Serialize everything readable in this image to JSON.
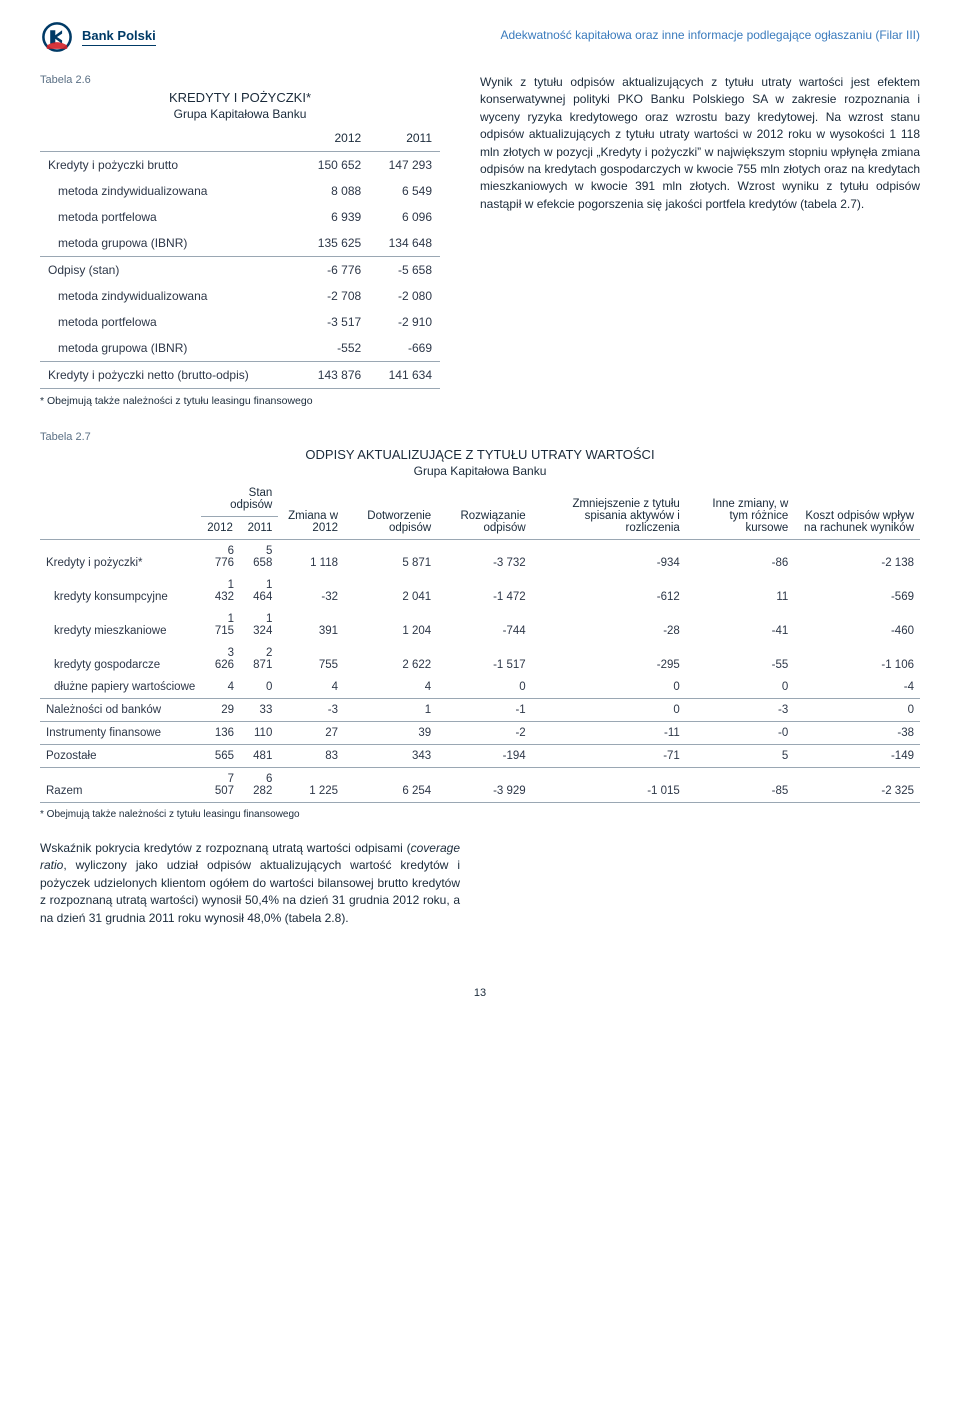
{
  "header": {
    "bank_name": "Bank Polski",
    "subtitle": "Adekwatność kapitałowa oraz inne informacje podlegające ogłaszaniu (Filar III)",
    "logo_colors": {
      "outer": "#003a66",
      "inner": "#d02028"
    }
  },
  "table26": {
    "label": "Tabela 2.6",
    "title": "KREDYTY I POŻYCZKI*",
    "subtitle": "Grupa Kapitałowa Banku",
    "col_2012": "2012",
    "col_2011": "2011",
    "rows": [
      {
        "label": "Kredyty i pożyczki brutto",
        "v12": "150 652",
        "v11": "147 293",
        "style": "top"
      },
      {
        "label": "metoda zindywidualizowana",
        "v12": "8 088",
        "v11": "6 549",
        "style": "indent"
      },
      {
        "label": "metoda portfelowa",
        "v12": "6 939",
        "v11": "6 096",
        "style": "indent"
      },
      {
        "label": "metoda grupowa (IBNR)",
        "v12": "135 625",
        "v11": "134 648",
        "style": "indent"
      },
      {
        "label": "Odpisy (stan)",
        "v12": "-6 776",
        "v11": "-5 658",
        "style": "top"
      },
      {
        "label": "metoda zindywidualizowana",
        "v12": "-2 708",
        "v11": "-2 080",
        "style": "indent"
      },
      {
        "label": "metoda portfelowa",
        "v12": "-3 517",
        "v11": "-2 910",
        "style": "indent"
      },
      {
        "label": "metoda grupowa (IBNR)",
        "v12": "-552",
        "v11": "-669",
        "style": "indent"
      },
      {
        "label": "Kredyty i pożyczki netto (brutto-odpis)",
        "v12": "143 876",
        "v11": "141 634",
        "style": "topbottom"
      }
    ],
    "footnote": "* Obejmują także należności z tytułu leasingu finansowego"
  },
  "right_text": {
    "p1": "Wynik z tytułu odpisów aktualizujących z tytułu utraty wartości jest efektem konserwatywnej polityki PKO Banku Polskiego SA w zakresie rozpoznania i wyceny ryzyka kredytowego oraz wzrostu bazy kredytowej. Na wzrost stanu odpisów aktualizujących z tytułu utraty wartości w 2012 roku w wysokości 1 118 mln złotych w pozycji „Kredyty i pożyczki” w największym stopniu wpłynęła zmiana odpisów na kredytach gospodarczych w kwocie 755 mln złotych oraz na kredytach mieszkaniowych w kwocie 391 mln złotych. Wzrost wyniku z tytułu odpisów nastąpił w efekcie pogorszenia się jakości portfela kredytów (tabela 2.7)."
  },
  "table27": {
    "label": "Tabela 2.7",
    "title": "ODPISY AKTUALIZUJĄCE Z TYTUŁU UTRATY WARTOŚCI",
    "subtitle": "Grupa Kapitałowa Banku",
    "headers": {
      "stan": "Stan odpisów",
      "y2012": "2012",
      "y2011": "2011",
      "zmiana": "Zmiana w 2012",
      "dotw": "Dotworzenie odpisów",
      "rozw": "Rozwiązanie odpisów",
      "zmn": "Zmniejszenie z tytułu spisania aktywów i rozliczenia",
      "inne": "Inne zmiany, w tym różnice kursowe",
      "koszt": "Koszt odpisów wpływ na rachunek wyników"
    },
    "rows": [
      {
        "label": "Kredyty i pożyczki*",
        "v": [
          "6 776",
          "5 658",
          "1 118",
          "5 871",
          "-3 732",
          "-934",
          "-86",
          "-2 138"
        ],
        "style": "top"
      },
      {
        "label": "kredyty konsumpcyjne",
        "v": [
          "1 432",
          "1 464",
          "-32",
          "2 041",
          "-1 472",
          "-612",
          "11",
          "-569"
        ],
        "style": "indent"
      },
      {
        "label": "kredyty mieszkaniowe",
        "v": [
          "1 715",
          "1 324",
          "391",
          "1 204",
          "-744",
          "-28",
          "-41",
          "-460"
        ],
        "style": "indent"
      },
      {
        "label": "kredyty gospodarcze",
        "v": [
          "3 626",
          "2 871",
          "755",
          "2 622",
          "-1 517",
          "-295",
          "-55",
          "-1 106"
        ],
        "style": "indent"
      },
      {
        "label": "dłużne papiery wartościowe",
        "v": [
          "4",
          "0",
          "4",
          "4",
          "0",
          "0",
          "0",
          "-4"
        ],
        "style": "indent"
      },
      {
        "label": "Należności od banków",
        "v": [
          "29",
          "33",
          "-3",
          "1",
          "-1",
          "0",
          "-3",
          "0"
        ],
        "style": "top"
      },
      {
        "label": "Instrumenty finansowe",
        "v": [
          "136",
          "110",
          "27",
          "39",
          "-2",
          "-11",
          "-0",
          "-38"
        ],
        "style": "top"
      },
      {
        "label": "Pozostałe",
        "v": [
          "565",
          "481",
          "83",
          "343",
          "-194",
          "-71",
          "5",
          "-149"
        ],
        "style": "top"
      },
      {
        "label": "Razem",
        "v": [
          "7 507",
          "6 282",
          "1 225",
          "6 254",
          "-3 929",
          "-1 015",
          "-85",
          "-2 325"
        ],
        "style": "razem"
      }
    ],
    "footnote": "* Obejmują także należności z tytułu leasingu finansowego"
  },
  "bottom_paragraph": {
    "pre": "Wskaźnik pokrycia kredytów z rozpoznaną utratą wartości odpisami (",
    "italic": "coverage ratio",
    "post": ", wyliczony jako udział odpisów aktualizujących wartość kredytów i pożyczek udzielonych klientom ogółem do wartości bilansowej brutto kredytów z rozpoznaną utratą wartości) wynosił 50,4% na dzień 31 grudnia 2012 roku, a na dzień 31 grudnia 2011 roku wynosił 48,0% (tabela 2.8)."
  },
  "page_number": "13",
  "styling": {
    "border_color": "#9aa7b3"
  }
}
